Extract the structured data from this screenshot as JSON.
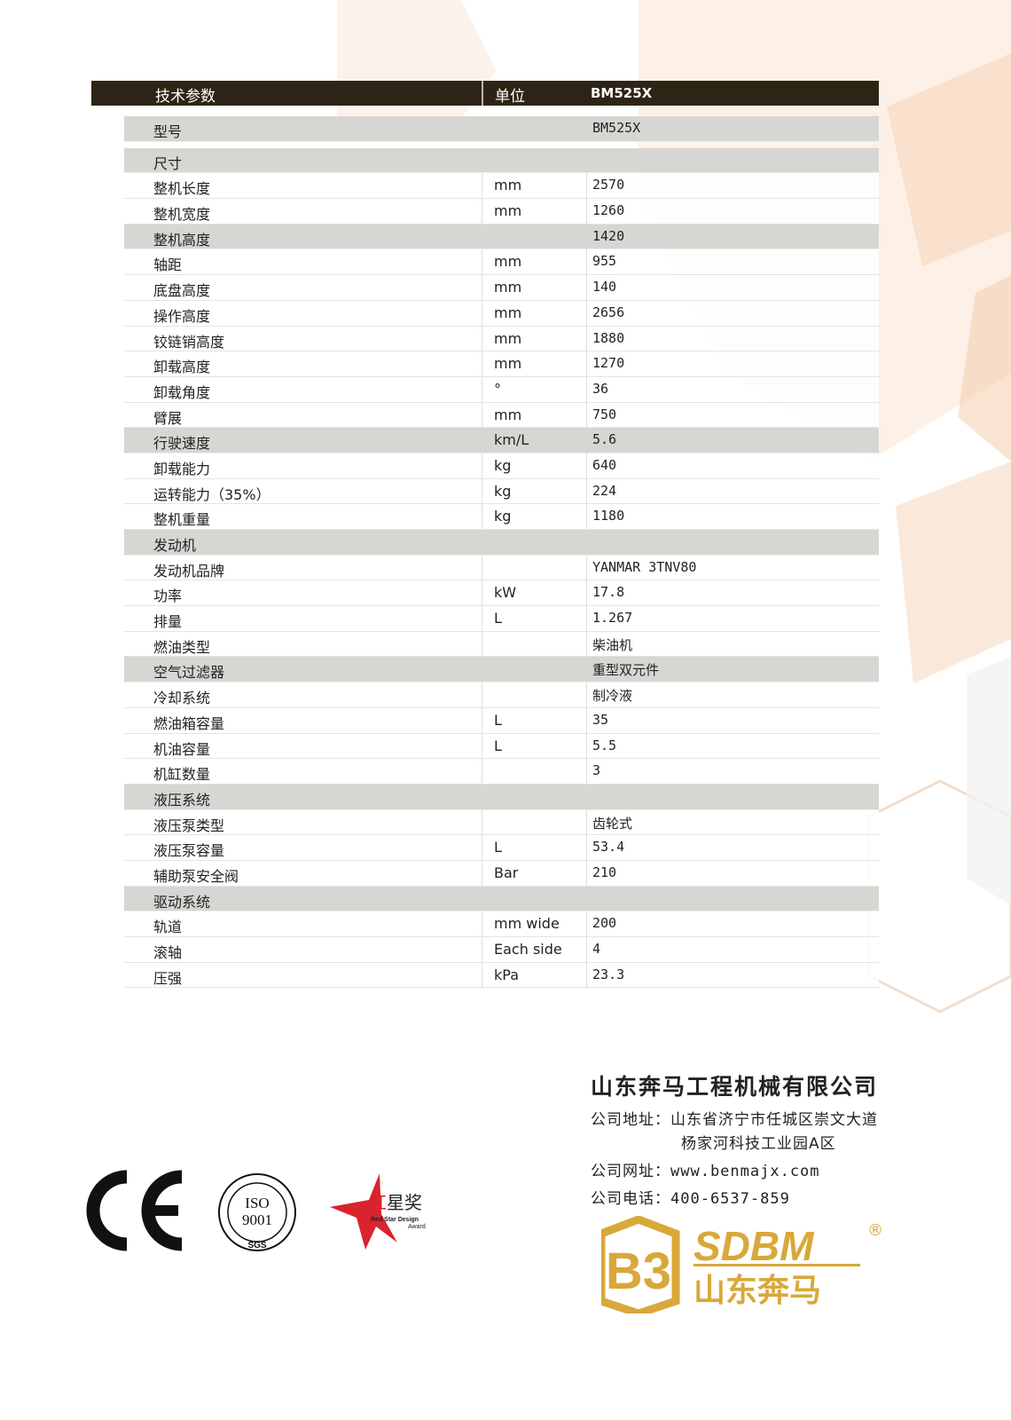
{
  "header": {
    "param": "技术参数",
    "unit": "单位",
    "model": "BM525X"
  },
  "rows": [
    {
      "name": "型号",
      "unit": "",
      "value": "BM525X",
      "section": true,
      "gap": true
    },
    {
      "name": "尺寸",
      "unit": "",
      "value": "",
      "section": true
    },
    {
      "name": "整机长度",
      "unit": "mm",
      "value": "2570"
    },
    {
      "name": "整机宽度",
      "unit": "mm",
      "value": "1260"
    },
    {
      "name": "整机高度",
      "unit": "",
      "value": "1420",
      "section": true
    },
    {
      "name": "轴距",
      "unit": "mm",
      "value": "955"
    },
    {
      "name": "底盘高度",
      "unit": "mm",
      "value": "140"
    },
    {
      "name": "操作高度",
      "unit": "mm",
      "value": "2656"
    },
    {
      "name": "铰链销高度",
      "unit": "mm",
      "value": "1880"
    },
    {
      "name": "卸载高度",
      "unit": "mm",
      "value": "1270"
    },
    {
      "name": "卸载角度",
      "unit": "°",
      "value": "36"
    },
    {
      "name": "臂展",
      "unit": "mm",
      "value": "750"
    },
    {
      "name": "行驶速度",
      "unit": "km/L",
      "value": "5.6",
      "section": true
    },
    {
      "name": "卸载能力",
      "unit": "kg",
      "value": "640"
    },
    {
      "name": "运转能力（35%）",
      "unit": "kg",
      "value": "224"
    },
    {
      "name": "整机重量",
      "unit": "kg",
      "value": "1180"
    },
    {
      "name": "发动机",
      "unit": "",
      "value": "",
      "section": true
    },
    {
      "name": "发动机品牌",
      "unit": "",
      "value": "YANMAR 3TNV80"
    },
    {
      "name": "功率",
      "unit": "kW",
      "value": "17.8"
    },
    {
      "name": "排量",
      "unit": "L",
      "value": "1.267"
    },
    {
      "name": "燃油类型",
      "unit": "",
      "value": "柴油机"
    },
    {
      "name": "空气过滤器",
      "unit": "",
      "value": "重型双元件",
      "section": true
    },
    {
      "name": "冷却系统",
      "unit": "",
      "value": "制冷液"
    },
    {
      "name": "燃油箱容量",
      "unit": "L",
      "value": "35"
    },
    {
      "name": "机油容量",
      "unit": "L",
      "value": "5.5"
    },
    {
      "name": "机缸数量",
      "unit": "",
      "value": "3"
    },
    {
      "name": "液压系统",
      "unit": "",
      "value": "",
      "section": true
    },
    {
      "name": "液压泵类型",
      "unit": "",
      "value": "齿轮式"
    },
    {
      "name": "液压泵容量",
      "unit": "L",
      "value": "53.4"
    },
    {
      "name": "辅助泵安全阀",
      "unit": "Bar",
      "value": "210"
    },
    {
      "name": "驱动系统",
      "unit": "",
      "value": "",
      "section": true
    },
    {
      "name": "轨道",
      "unit": "mm wide",
      "value": "200"
    },
    {
      "name": "滚轴",
      "unit": "Each side",
      "value": "4"
    },
    {
      "name": "压强",
      "unit": "kPa",
      "value": "23.3"
    }
  ],
  "company": {
    "name": "山东奔马工程机械有限公司",
    "address_label": "公司地址：",
    "address1": "山东省济宁市任城区崇文大道",
    "address2": "杨家河科技工业园A区",
    "web_label": "公司网址：",
    "web": "www.benmajx.com",
    "phone_label": "公司电话：",
    "phone": "400-6537-859"
  },
  "logos": {
    "ce": "CE",
    "iso": "ISO 9001",
    "iso_ring": "QUALITY ASSURED FIRM",
    "sgs": "SGS",
    "redstar_cn": "红星奖",
    "redstar_en": "Red Star Design Award",
    "brand": "SDBM",
    "brand_cn": "山东奔马",
    "brand_mark": "®"
  },
  "colors": {
    "header_bg": "#2e2415",
    "section_bg": "#d6d6d3",
    "brand_gold": "#d8a83a",
    "redstar": "#d9232d"
  }
}
